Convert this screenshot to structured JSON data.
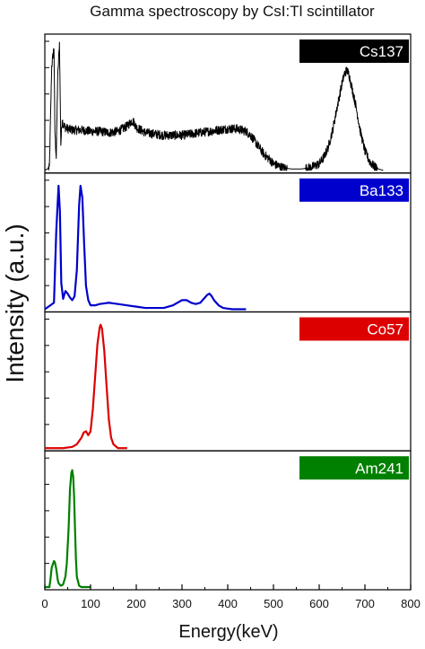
{
  "chart_data": {
    "type": "line",
    "title": "Gamma spectroscopy by CsI:Tl scintillator",
    "xlabel": "Energy(keV)",
    "ylabel": "Intensity (a.u.)",
    "xlim": [
      0,
      800
    ],
    "x_ticks": [
      "0",
      "100",
      "200",
      "300",
      "400",
      "500",
      "600",
      "700",
      "800"
    ],
    "panels": [
      {
        "name": "Cs137",
        "color": "#000000",
        "noisy": true,
        "x": [
          0,
          10,
          15,
          20,
          22,
          25,
          28,
          32,
          35,
          38,
          40,
          45,
          50,
          60,
          80,
          100,
          120,
          140,
          160,
          180,
          190,
          195,
          200,
          210,
          220,
          240,
          260,
          280,
          300,
          320,
          340,
          360,
          380,
          400,
          420,
          430,
          440,
          450,
          460,
          470,
          480,
          490,
          500,
          520,
          540,
          560,
          580,
          600,
          610,
          620,
          630,
          640,
          650,
          655,
          660,
          665,
          670,
          680,
          690,
          700,
          710,
          720,
          730,
          740
        ],
        "y": [
          0,
          2,
          80,
          95,
          30,
          10,
          70,
          98,
          20,
          40,
          35,
          33,
          32,
          31,
          31,
          30,
          30,
          29,
          30,
          34,
          38,
          37,
          33,
          31,
          29,
          28,
          27,
          27,
          27,
          28,
          29,
          30,
          31,
          32,
          32,
          31,
          30,
          27,
          22,
          17,
          12,
          9,
          5,
          2,
          1,
          1,
          2,
          5,
          10,
          18,
          32,
          50,
          67,
          74,
          77,
          74,
          66,
          50,
          30,
          15,
          7,
          3,
          1,
          0
        ]
      },
      {
        "name": "Ba133",
        "color": "#0000cc",
        "noisy": false,
        "x": [
          0,
          20,
          25,
          30,
          33,
          36,
          40,
          45,
          50,
          55,
          60,
          65,
          70,
          75,
          78,
          82,
          86,
          90,
          95,
          100,
          110,
          120,
          140,
          160,
          180,
          200,
          220,
          240,
          260,
          280,
          290,
          300,
          310,
          320,
          330,
          340,
          350,
          355,
          360,
          365,
          370,
          380,
          390,
          400,
          410,
          420,
          440
        ],
        "y": [
          0,
          5,
          60,
          95,
          75,
          20,
          8,
          14,
          12,
          9,
          7,
          10,
          30,
          80,
          95,
          86,
          50,
          18,
          7,
          3,
          3,
          4,
          5,
          4,
          3,
          2,
          1,
          1,
          1,
          3,
          5,
          7,
          7,
          5,
          4,
          5,
          9,
          11,
          12,
          10,
          7,
          3,
          1,
          0.5,
          0,
          0,
          0
        ]
      },
      {
        "name": "Co57",
        "color": "#dd0000",
        "noisy": false,
        "x": [
          0,
          40,
          60,
          70,
          80,
          85,
          90,
          95,
          100,
          105,
          110,
          115,
          120,
          122,
          125,
          130,
          135,
          140,
          145,
          150,
          160,
          180
        ],
        "y": [
          0,
          0,
          1,
          3,
          8,
          12,
          13,
          10,
          13,
          30,
          55,
          80,
          93,
          95,
          92,
          75,
          48,
          22,
          8,
          3,
          0,
          0
        ]
      },
      {
        "name": "Am241",
        "color": "#008000",
        "noisy": false,
        "x": [
          0,
          10,
          12,
          15,
          18,
          20,
          22,
          25,
          28,
          30,
          35,
          40,
          45,
          48,
          52,
          55,
          58,
          60,
          62,
          64,
          66,
          68,
          70,
          75,
          80,
          90,
          100
        ],
        "y": [
          0,
          0,
          5,
          15,
          18,
          20,
          19,
          14,
          6,
          3,
          1,
          2,
          8,
          18,
          45,
          75,
          88,
          90,
          85,
          70,
          45,
          22,
          8,
          1,
          0,
          0,
          0
        ]
      }
    ]
  }
}
